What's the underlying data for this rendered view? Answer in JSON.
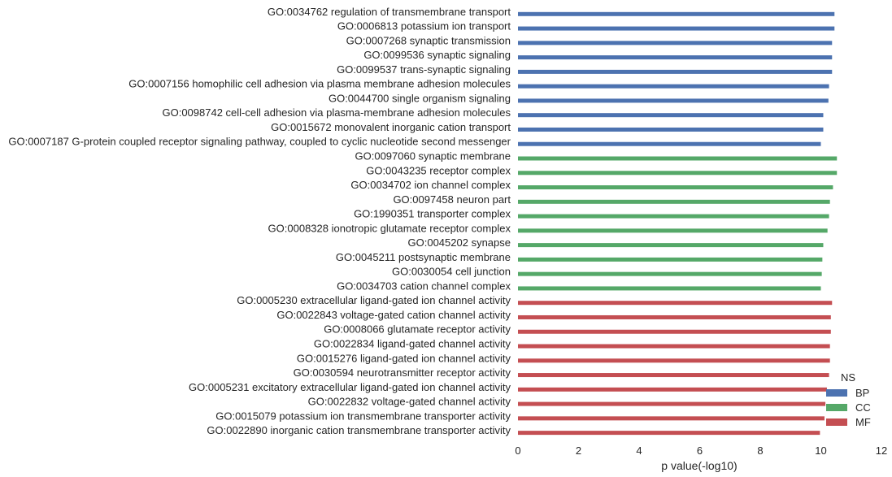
{
  "chart_data": {
    "type": "bar",
    "orientation": "horizontal",
    "xlabel": "p value(-log10)",
    "ylabel": "",
    "xlim": [
      0,
      12
    ],
    "xticks": [
      "0",
      "2",
      "4",
      "6",
      "8",
      "10",
      "12"
    ],
    "grid": false,
    "legend": {
      "title": "NS",
      "placement": "bottom-right",
      "entries": [
        {
          "name": "BP",
          "color": "#4c72b0"
        },
        {
          "name": "CC",
          "color": "#55a868"
        },
        {
          "name": "MF",
          "color": "#c44e52"
        }
      ]
    },
    "categories": [
      {
        "label": "GO:0034762 regulation of transmembrane transport",
        "group": "BP",
        "value": 10.45
      },
      {
        "label": "GO:0006813 potassium ion transport",
        "group": "BP",
        "value": 10.45
      },
      {
        "label": "GO:0007268 synaptic transmission",
        "group": "BP",
        "value": 10.37
      },
      {
        "label": "GO:0099536 synaptic signaling",
        "group": "BP",
        "value": 10.37
      },
      {
        "label": "GO:0099537 trans-synaptic signaling",
        "group": "BP",
        "value": 10.37
      },
      {
        "label": "GO:0007156 homophilic cell adhesion via plasma membrane adhesion molecules",
        "group": "BP",
        "value": 10.27
      },
      {
        "label": "GO:0044700 single organism signaling",
        "group": "BP",
        "value": 10.25
      },
      {
        "label": "GO:0098742 cell-cell adhesion via plasma-membrane adhesion molecules",
        "group": "BP",
        "value": 10.08
      },
      {
        "label": "GO:0015672 monovalent inorganic cation transport",
        "group": "BP",
        "value": 10.08
      },
      {
        "label": "GO:0007187 G-protein coupled receptor signaling pathway, coupled to cyclic nucleotide second messenger",
        "group": "BP",
        "value": 10.0
      },
      {
        "label": "GO:0097060 synaptic membrane",
        "group": "CC",
        "value": 10.53
      },
      {
        "label": "GO:0043235 receptor complex",
        "group": "CC",
        "value": 10.53
      },
      {
        "label": "GO:0034702 ion channel complex",
        "group": "CC",
        "value": 10.4
      },
      {
        "label": "GO:0097458 neuron part",
        "group": "CC",
        "value": 10.3
      },
      {
        "label": "GO:1990351 transporter complex",
        "group": "CC",
        "value": 10.27
      },
      {
        "label": "GO:0008328 ionotropic glutamate receptor complex",
        "group": "CC",
        "value": 10.22
      },
      {
        "label": "GO:0045202 synapse",
        "group": "CC",
        "value": 10.08
      },
      {
        "label": "GO:0045211 postsynaptic membrane",
        "group": "CC",
        "value": 10.05
      },
      {
        "label": "GO:0030054 cell junction",
        "group": "CC",
        "value": 10.03
      },
      {
        "label": "GO:0034703 cation channel complex",
        "group": "CC",
        "value": 10.0
      },
      {
        "label": "GO:0005230 extracellular ligand-gated ion channel activity",
        "group": "MF",
        "value": 10.37
      },
      {
        "label": "GO:0022843 voltage-gated cation channel activity",
        "group": "MF",
        "value": 10.33
      },
      {
        "label": "GO:0008066 glutamate receptor activity",
        "group": "MF",
        "value": 10.33
      },
      {
        "label": "GO:0022834 ligand-gated channel activity",
        "group": "MF",
        "value": 10.3
      },
      {
        "label": "GO:0015276 ligand-gated ion channel activity",
        "group": "MF",
        "value": 10.3
      },
      {
        "label": "GO:0030594 neurotransmitter receptor activity",
        "group": "MF",
        "value": 10.27
      },
      {
        "label": "GO:0005231 excitatory extracellular ligand-gated ion channel activity",
        "group": "MF",
        "value": 10.2
      },
      {
        "label": "GO:0022832 voltage-gated channel activity",
        "group": "MF",
        "value": 10.15
      },
      {
        "label": "GO:0015079 potassium ion transmembrane transporter activity",
        "group": "MF",
        "value": 10.12
      },
      {
        "label": "GO:0022890 inorganic cation transmembrane transporter activity",
        "group": "MF",
        "value": 9.97
      }
    ]
  }
}
